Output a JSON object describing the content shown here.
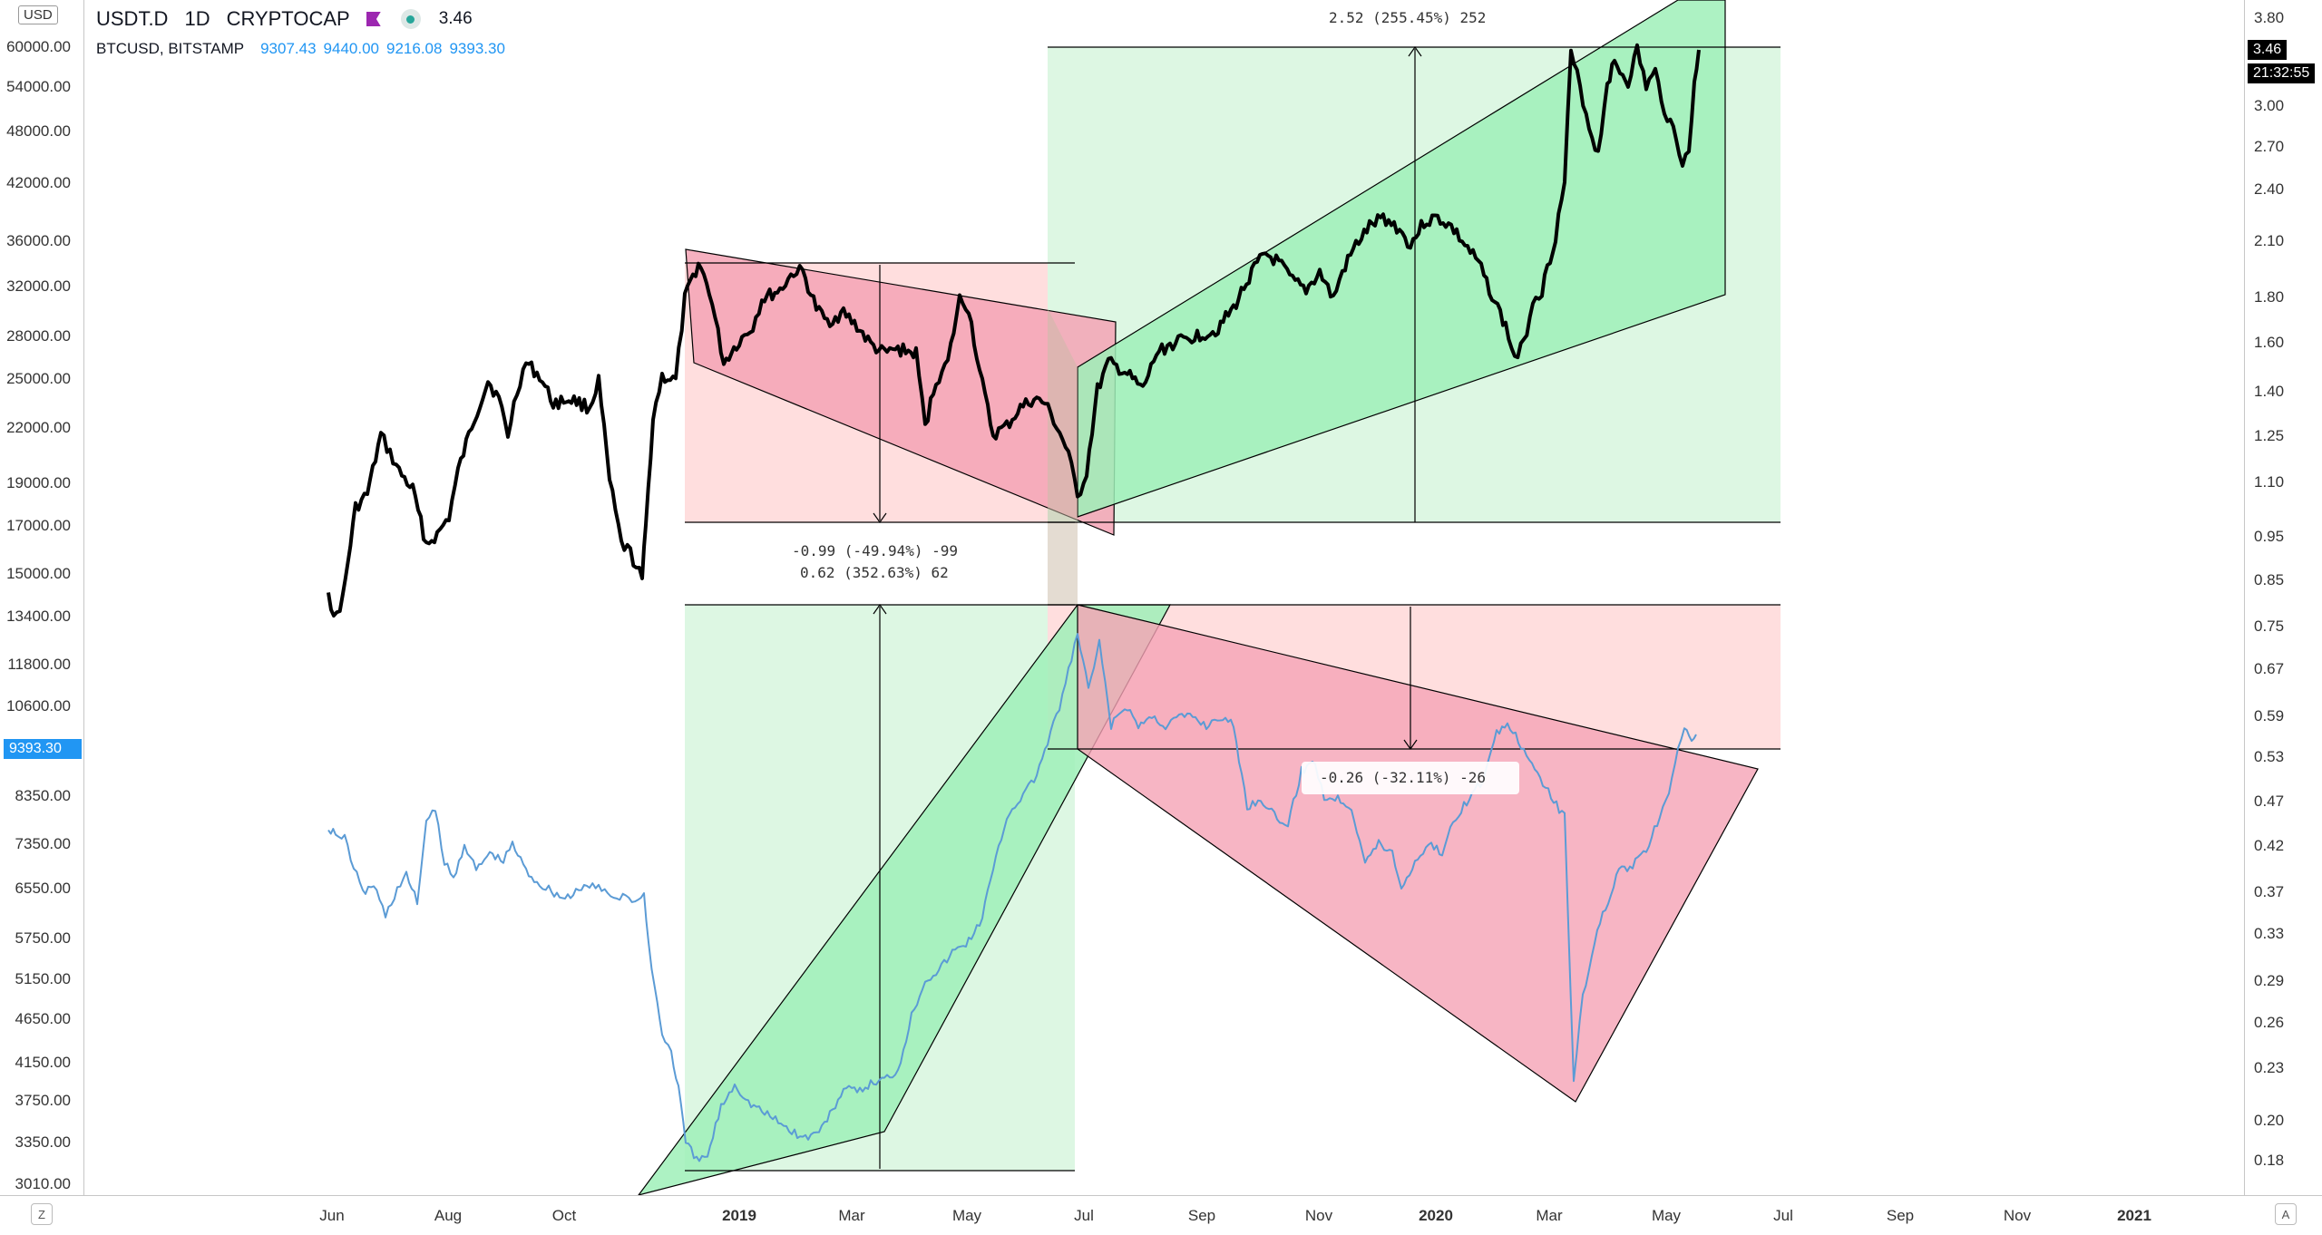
{
  "header": {
    "symbol": "USDT.D",
    "interval": "1D",
    "exchange": "CRYPTOCAP",
    "last": "3.46",
    "currency_badge": "USD"
  },
  "compare": {
    "symbol": "BTCUSD, BITSTAMP",
    "open": "9307.43",
    "high": "9440.00",
    "low": "9216.08",
    "close": "9393.30"
  },
  "left_axis": {
    "ticks": [
      "60000.00",
      "54000.00",
      "48000.00",
      "42000.00",
      "36000.00",
      "32000.00",
      "28000.00",
      "25000.00",
      "22000.00",
      "19000.00",
      "17000.00",
      "15000.00",
      "13400.00",
      "11800.00",
      "10600.00",
      "8350.00",
      "7350.00",
      "6550.00",
      "5750.00",
      "5150.00",
      "4650.00",
      "4150.00",
      "3750.00",
      "3350.00",
      "3010.00"
    ],
    "price_badge": "9393.30"
  },
  "right_axis": {
    "ticks": [
      "3.80",
      "3.00",
      "2.70",
      "2.40",
      "2.10",
      "1.80",
      "1.60",
      "1.40",
      "1.25",
      "1.10",
      "0.95",
      "0.85",
      "0.75",
      "0.67",
      "0.59",
      "0.53",
      "0.47",
      "0.42",
      "0.37",
      "0.33",
      "0.29",
      "0.26",
      "0.23",
      "0.20",
      "0.18"
    ],
    "price_badge": "3.46",
    "countdown": "21:32:55"
  },
  "time_axis": {
    "labels": [
      "Jun",
      "Aug",
      "Oct",
      "2019",
      "Mar",
      "May",
      "Jul",
      "Sep",
      "Nov",
      "2020",
      "Mar",
      "May",
      "Jul",
      "Sep",
      "Nov",
      "2021"
    ],
    "bold": [
      false,
      false,
      false,
      true,
      false,
      false,
      false,
      false,
      false,
      true,
      false,
      false,
      false,
      false,
      false,
      true
    ]
  },
  "measurements": {
    "usdt_up": "2.52 (255.45%) 252",
    "usdt_down": "-0.99 (-49.94%) -99",
    "btc_up": "0.62 (352.63%) 62",
    "btc_down": "-0.26 (-32.11%) -26"
  },
  "corners": {
    "left": "Z",
    "right": "A"
  },
  "colors": {
    "usdt_line": "#000000",
    "btc_line": "#5b9bd5",
    "green_zone": "#ddf7e3",
    "green_channel": "#9ff0b8",
    "red_zone": "#ffdede",
    "red_channel": "#f5a3b5",
    "price_badge": "#2196f3"
  }
}
